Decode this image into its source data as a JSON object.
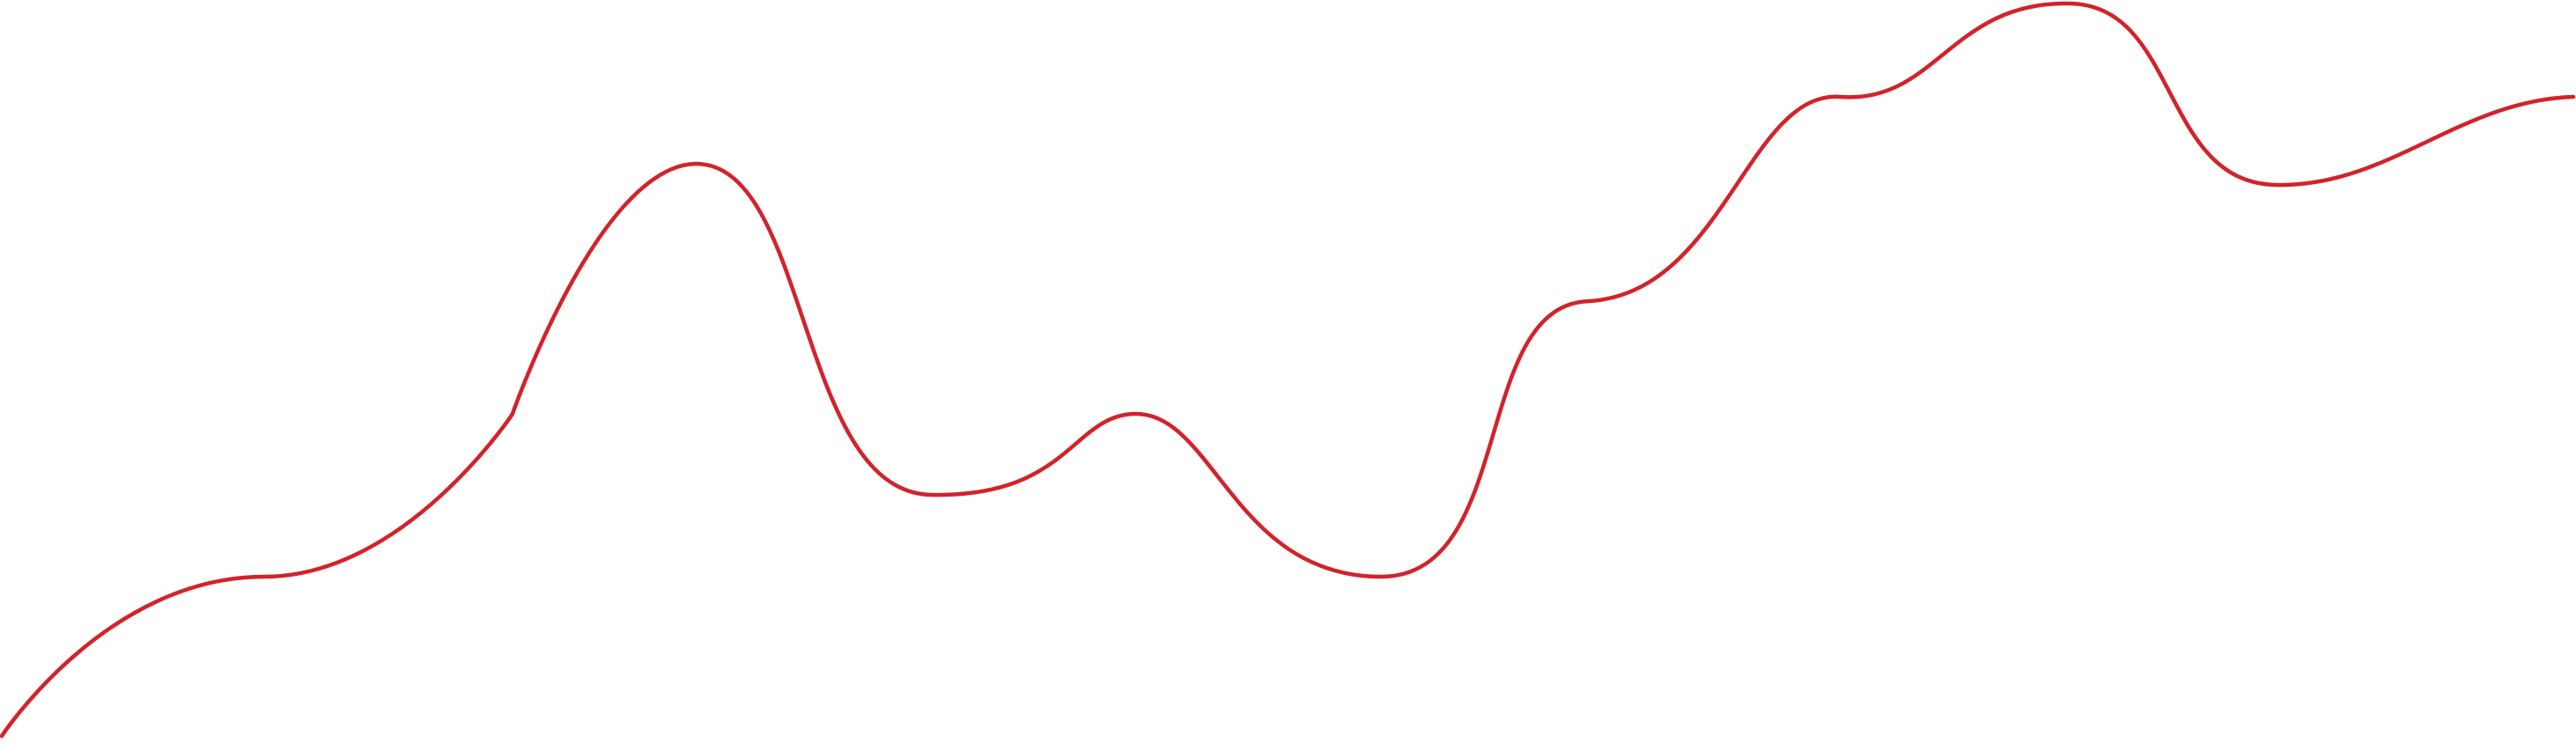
{
  "graphic": {
    "line_color": "#d2232a",
    "background_color": "#ffffff",
    "shape": "smooth red wave line"
  }
}
